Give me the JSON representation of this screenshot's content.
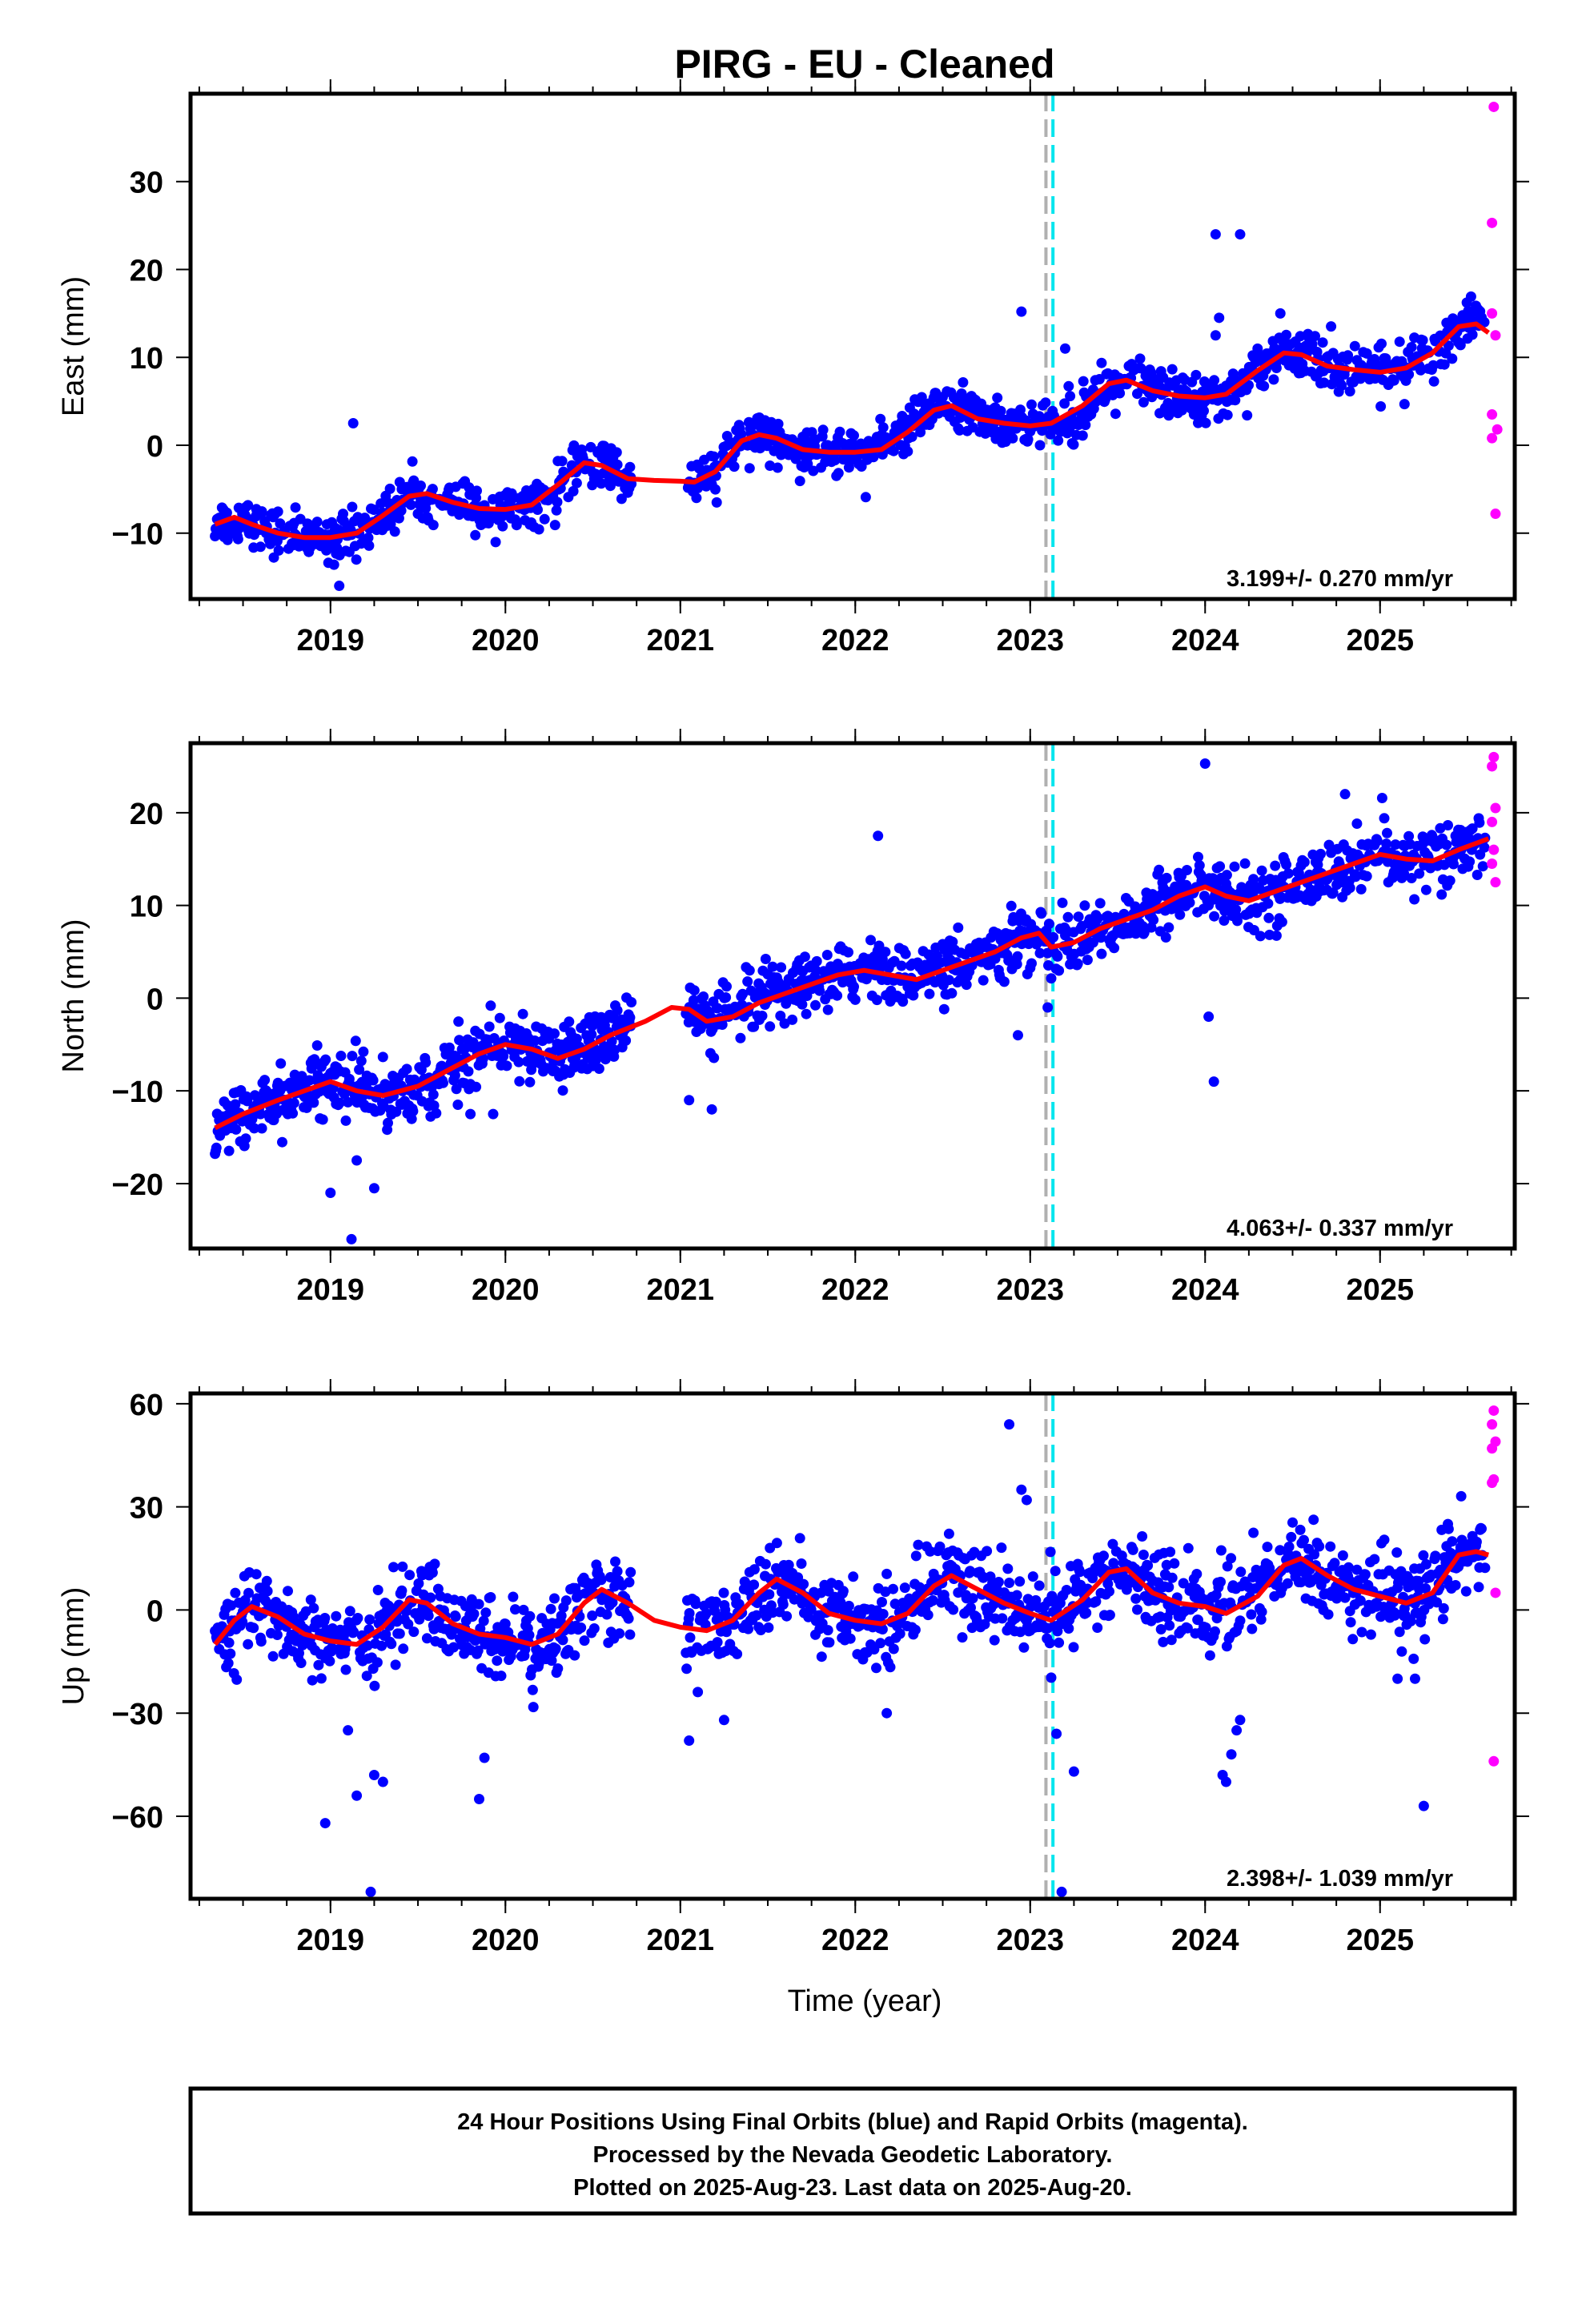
{
  "title": "PIRG  - EU - Cleaned",
  "xlabel": "Time (year)",
  "footer": {
    "lines": [
      "24 Hour Positions Using Final Orbits (blue) and Rapid Orbits (magenta).",
      "Processed by the Nevada Geodetic Laboratory.",
      "Plotted on 2025-Aug-23. Last data on 2025-Aug-20."
    ]
  },
  "colors": {
    "final_orbits": "#0000ff",
    "rapid_orbits": "#ff00ff",
    "model": "#ff0000",
    "event_line_gray": "#b0b0b0",
    "event_line_cyan": "#00e5ee"
  },
  "chart_data": [
    {
      "type": "scatter",
      "ylabel": "East (mm)",
      "rate_text": "3.199+/- 0.270 mm/yr",
      "xlim": [
        2018.2,
        2025.77
      ],
      "ylim": [
        -17.5,
        40
      ],
      "xticks": [
        2019,
        2020,
        2021,
        2022,
        2023,
        2024,
        2025
      ],
      "yticks": [
        -10,
        0,
        10,
        20,
        30
      ],
      "event_lines": [
        2023.09,
        2023.13
      ],
      "model": {
        "x": [
          2018.34,
          2018.45,
          2018.55,
          2018.7,
          2018.85,
          2019.0,
          2019.15,
          2019.3,
          2019.45,
          2019.55,
          2019.7,
          2019.85,
          2020.0,
          2020.15,
          2020.3,
          2020.45,
          2020.55,
          2020.7,
          2020.85,
          2021.0,
          2021.08,
          2021.2,
          2021.35,
          2021.45,
          2021.55,
          2021.7,
          2021.85,
          2022.0,
          2022.15,
          2022.3,
          2022.45,
          2022.55,
          2022.7,
          2022.85,
          2023.0,
          2023.12,
          2023.3,
          2023.45,
          2023.55,
          2023.7,
          2023.85,
          2024.0,
          2024.12,
          2024.3,
          2024.45,
          2024.55,
          2024.7,
          2024.85,
          2025.0,
          2025.15,
          2025.3,
          2025.45,
          2025.55,
          2025.62
        ],
        "y": [
          -9.0,
          -8.2,
          -9.0,
          -10.0,
          -10.5,
          -10.5,
          -10.0,
          -8.0,
          -5.8,
          -5.5,
          -6.5,
          -7.2,
          -7.3,
          -6.8,
          -4.5,
          -2.0,
          -2.3,
          -3.8,
          -4.0,
          -4.1,
          -4.2,
          -3.0,
          0.5,
          1.2,
          0.8,
          -0.5,
          -0.8,
          -0.8,
          -0.5,
          1.5,
          4.0,
          4.5,
          3.0,
          2.5,
          2.2,
          2.5,
          4.5,
          7.0,
          7.4,
          6.2,
          5.6,
          5.4,
          5.8,
          8.5,
          10.5,
          10.3,
          9.0,
          8.6,
          8.3,
          8.8,
          10.5,
          13.5,
          13.8,
          12.8
        ]
      },
      "outliers": [
        [
          2019.13,
          2.5
        ],
        [
          2019.05,
          -16.0
        ],
        [
          2022.95,
          15.2
        ],
        [
          2023.2,
          11.0
        ],
        [
          2024.06,
          24.0
        ],
        [
          2024.2,
          24.0
        ],
        [
          2024.08,
          14.5
        ],
        [
          2024.43,
          15.0
        ],
        [
          2024.06,
          12.5
        ]
      ],
      "rapid": [
        [
          2025.65,
          38.5
        ],
        [
          2025.64,
          25.3
        ],
        [
          2025.64,
          15.0
        ],
        [
          2025.66,
          12.5
        ],
        [
          2025.64,
          3.5
        ],
        [
          2025.67,
          1.8
        ],
        [
          2025.64,
          0.8
        ],
        [
          2025.66,
          -7.8
        ]
      ]
    },
    {
      "type": "scatter",
      "ylabel": "North (mm)",
      "rate_text": "4.063+/- 0.337 mm/yr",
      "xlim": [
        2018.2,
        2025.77
      ],
      "ylim": [
        -27,
        27.5
      ],
      "xticks": [
        2019,
        2020,
        2021,
        2022,
        2023,
        2024,
        2025
      ],
      "yticks": [
        -20,
        -10,
        0,
        10,
        20
      ],
      "event_lines": [
        2023.09,
        2023.13
      ],
      "model": {
        "x": [
          2018.34,
          2018.5,
          2018.7,
          2018.85,
          2019.0,
          2019.15,
          2019.3,
          2019.5,
          2019.7,
          2019.85,
          2020.0,
          2020.15,
          2020.3,
          2020.45,
          2020.6,
          2020.8,
          2020.95,
          2021.05,
          2021.15,
          2021.3,
          2021.45,
          2021.6,
          2021.75,
          2021.9,
          2022.05,
          2022.2,
          2022.35,
          2022.5,
          2022.65,
          2022.8,
          2022.95,
          2023.05,
          2023.12,
          2023.25,
          2023.4,
          2023.55,
          2023.7,
          2023.85,
          2024.0,
          2024.12,
          2024.25,
          2024.4,
          2024.55,
          2024.7,
          2024.85,
          2025.0,
          2025.15,
          2025.3,
          2025.45,
          2025.62
        ],
        "y": [
          -14.0,
          -12.5,
          -11.0,
          -10.0,
          -9.0,
          -10.0,
          -10.5,
          -9.5,
          -7.5,
          -6.0,
          -5.0,
          -5.5,
          -6.5,
          -5.5,
          -4.0,
          -2.5,
          -1.0,
          -1.2,
          -2.5,
          -2.0,
          -0.5,
          0.5,
          1.5,
          2.5,
          3.0,
          2.5,
          2.0,
          3.0,
          4.0,
          5.0,
          6.5,
          7.0,
          5.5,
          6.0,
          7.5,
          8.5,
          9.5,
          11.0,
          12.0,
          11.0,
          10.5,
          11.5,
          12.5,
          13.5,
          14.5,
          15.5,
          15.0,
          14.8,
          16.0,
          17.2
        ]
      },
      "outliers": [
        [
          2022.13,
          17.5
        ],
        [
          2024.0,
          25.3
        ],
        [
          2019.0,
          -21.0
        ],
        [
          2019.12,
          -26.0
        ],
        [
          2019.25,
          -20.5
        ],
        [
          2019.15,
          -17.5
        ],
        [
          2021.05,
          -11.0
        ],
        [
          2021.18,
          -12.0
        ],
        [
          2024.05,
          -9.0
        ],
        [
          2024.02,
          -2.0
        ],
        [
          2022.93,
          -4.0
        ],
        [
          2023.1,
          -1.0
        ],
        [
          2019.8,
          -12.5
        ],
        [
          2019.93,
          -12.5
        ],
        [
          2024.8,
          22.0
        ]
      ],
      "rapid": [
        [
          2025.65,
          26.0
        ],
        [
          2025.64,
          25.0
        ],
        [
          2025.66,
          20.5
        ],
        [
          2025.64,
          19.0
        ],
        [
          2025.65,
          16.0
        ],
        [
          2025.64,
          14.5
        ],
        [
          2025.66,
          12.5
        ]
      ]
    },
    {
      "type": "scatter",
      "ylabel": "Up (mm)",
      "rate_text": "2.398+/- 1.039 mm/yr",
      "xlim": [
        2018.2,
        2025.77
      ],
      "ylim": [
        -84,
        63
      ],
      "xticks": [
        2019,
        2020,
        2021,
        2022,
        2023,
        2024,
        2025
      ],
      "yticks": [
        -60,
        -30,
        0,
        30,
        60
      ],
      "event_lines": [
        2023.09,
        2023.13
      ],
      "model": {
        "x": [
          2018.34,
          2018.45,
          2018.55,
          2018.7,
          2018.85,
          2019.0,
          2019.15,
          2019.3,
          2019.45,
          2019.55,
          2019.7,
          2019.85,
          2020.0,
          2020.15,
          2020.3,
          2020.45,
          2020.55,
          2020.7,
          2020.85,
          2021.0,
          2021.15,
          2021.3,
          2021.45,
          2021.55,
          2021.7,
          2021.85,
          2022.0,
          2022.15,
          2022.3,
          2022.45,
          2022.55,
          2022.7,
          2022.85,
          2023.0,
          2023.12,
          2023.3,
          2023.45,
          2023.55,
          2023.7,
          2023.85,
          2024.0,
          2024.12,
          2024.3,
          2024.45,
          2024.55,
          2024.7,
          2024.85,
          2025.0,
          2025.15,
          2025.3,
          2025.45,
          2025.55,
          2025.62
        ],
        "y": [
          -10,
          -3,
          1,
          -2,
          -7,
          -9,
          -10,
          -5,
          3,
          2,
          -4,
          -7,
          -8,
          -10,
          -7,
          2,
          6,
          2,
          -3,
          -5,
          -6,
          -3,
          5,
          9,
          5,
          -1,
          -3,
          -4,
          -1,
          7,
          10,
          6,
          2,
          -1,
          -3,
          3,
          11,
          12,
          5,
          2,
          1,
          -1,
          4,
          13,
          15,
          10,
          6,
          4,
          2,
          5,
          16,
          17,
          16
        ]
      },
      "outliers": [
        [
          2018.97,
          -62
        ],
        [
          2019.15,
          -54
        ],
        [
          2019.25,
          -48
        ],
        [
          2019.3,
          -50
        ],
        [
          2019.23,
          -82
        ],
        [
          2019.1,
          -35
        ],
        [
          2019.88,
          -43
        ],
        [
          2019.85,
          -55
        ],
        [
          2021.05,
          -38
        ],
        [
          2021.25,
          -32
        ],
        [
          2022.18,
          -30
        ],
        [
          2022.88,
          54
        ],
        [
          2022.95,
          35
        ],
        [
          2022.98,
          32
        ],
        [
          2023.03,
          -5
        ],
        [
          2023.18,
          -82
        ],
        [
          2023.25,
          -47
        ],
        [
          2023.15,
          -36
        ],
        [
          2024.1,
          -48
        ],
        [
          2024.12,
          -50
        ],
        [
          2024.15,
          -42
        ],
        [
          2024.18,
          -35
        ],
        [
          2024.2,
          -32
        ],
        [
          2025.25,
          -57
        ],
        [
          2025.1,
          -20
        ],
        [
          2025.2,
          -20
        ]
      ],
      "rapid": [
        [
          2025.65,
          58
        ],
        [
          2025.64,
          54
        ],
        [
          2025.66,
          49
        ],
        [
          2025.64,
          47
        ],
        [
          2025.65,
          38
        ],
        [
          2025.64,
          37
        ],
        [
          2025.66,
          5
        ],
        [
          2025.65,
          -44
        ]
      ]
    }
  ]
}
